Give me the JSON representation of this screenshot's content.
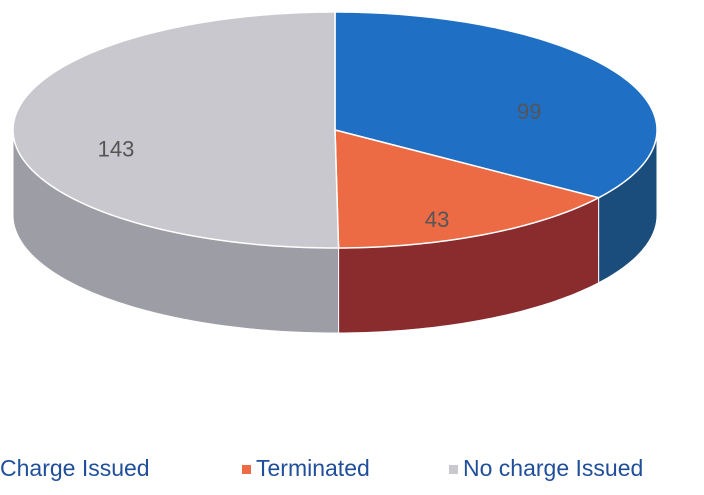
{
  "chart_data": {
    "type": "pie3d",
    "categories": [
      "Charge Issued",
      "Terminated",
      "No charge Issued"
    ],
    "values": [
      99,
      43,
      143
    ],
    "colors": [
      "#1f6fc4",
      "#ec6b45",
      "#c8c8ce"
    ],
    "side_colors": [
      "#1a4c7c",
      "#8a2b2d",
      "#9d9da5"
    ],
    "legend": "bottom"
  }
}
